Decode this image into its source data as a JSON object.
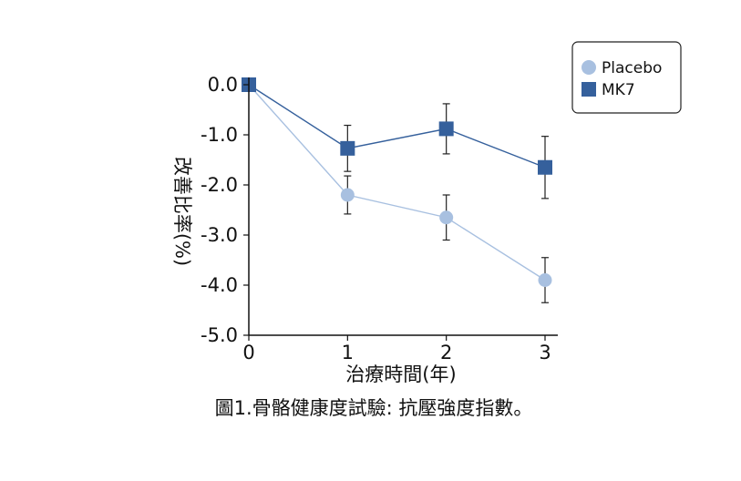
{
  "chart_data": {
    "type": "line",
    "x": [
      0,
      1,
      2,
      3
    ],
    "xticks": [
      "0",
      "1",
      "2",
      "3"
    ],
    "yticks": [
      "0.0",
      "-1.0",
      "-2.0",
      "-3.0",
      "-4.0",
      "-5.0"
    ],
    "ylim": [
      -5.0,
      0.0
    ],
    "xlim": [
      0,
      3
    ],
    "xlabel": "治療時間(年)",
    "ylabel": "改善比率(%)",
    "caption": "圖1.骨骼健康度試驗: 抗壓強度指數。",
    "grid": false,
    "legend_position": "top-right",
    "series": [
      {
        "name": "Placebo",
        "marker": "circle",
        "color": "#a8c0e0",
        "values": [
          0.0,
          -2.2,
          -2.65,
          -3.9
        ],
        "errors": [
          0.0,
          0.38,
          0.45,
          0.45
        ]
      },
      {
        "name": "MK7",
        "marker": "square",
        "color": "#35609c",
        "values": [
          0.0,
          -1.27,
          -0.88,
          -1.65
        ],
        "errors": [
          0.0,
          0.46,
          0.5,
          0.62
        ]
      }
    ]
  }
}
